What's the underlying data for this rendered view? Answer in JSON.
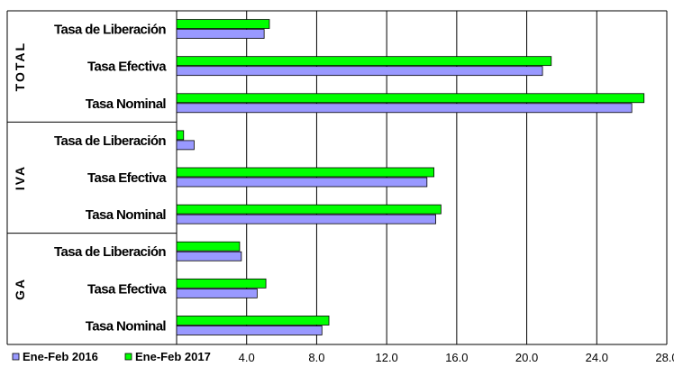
{
  "chart_data": {
    "type": "bar",
    "orientation": "horizontal",
    "grouped_categories": [
      {
        "group": "TOTAL",
        "categories": [
          "Tasa de Liberación",
          "Tasa Efectiva",
          "Tasa Nominal"
        ]
      },
      {
        "group": "IVA",
        "categories": [
          "Tasa de Liberación",
          "Tasa Efectiva",
          "Tasa Nominal"
        ]
      },
      {
        "group": "GA",
        "categories": [
          "Tasa de Liberación",
          "Tasa Efectiva",
          "Tasa Nominal"
        ]
      }
    ],
    "series": [
      {
        "name": "Ene-Feb 2017",
        "color": "#00ff00",
        "values": [
          5.3,
          21.4,
          26.7,
          0.4,
          14.7,
          15.1,
          3.6,
          5.1,
          8.7
        ]
      },
      {
        "name": "Ene-Feb 2016",
        "color": "#9999ff",
        "values": [
          5.0,
          20.9,
          26.0,
          1.0,
          14.3,
          14.8,
          3.7,
          4.6,
          8.3
        ]
      }
    ],
    "xlim": [
      0,
      28
    ],
    "xticks": [
      "4.0",
      "8.0",
      "12.0",
      "16.0",
      "20.0",
      "24.0",
      "28.0"
    ],
    "grid": true,
    "legend_position": "bottom-left",
    "title": "",
    "xlabel": "",
    "ylabel": ""
  }
}
